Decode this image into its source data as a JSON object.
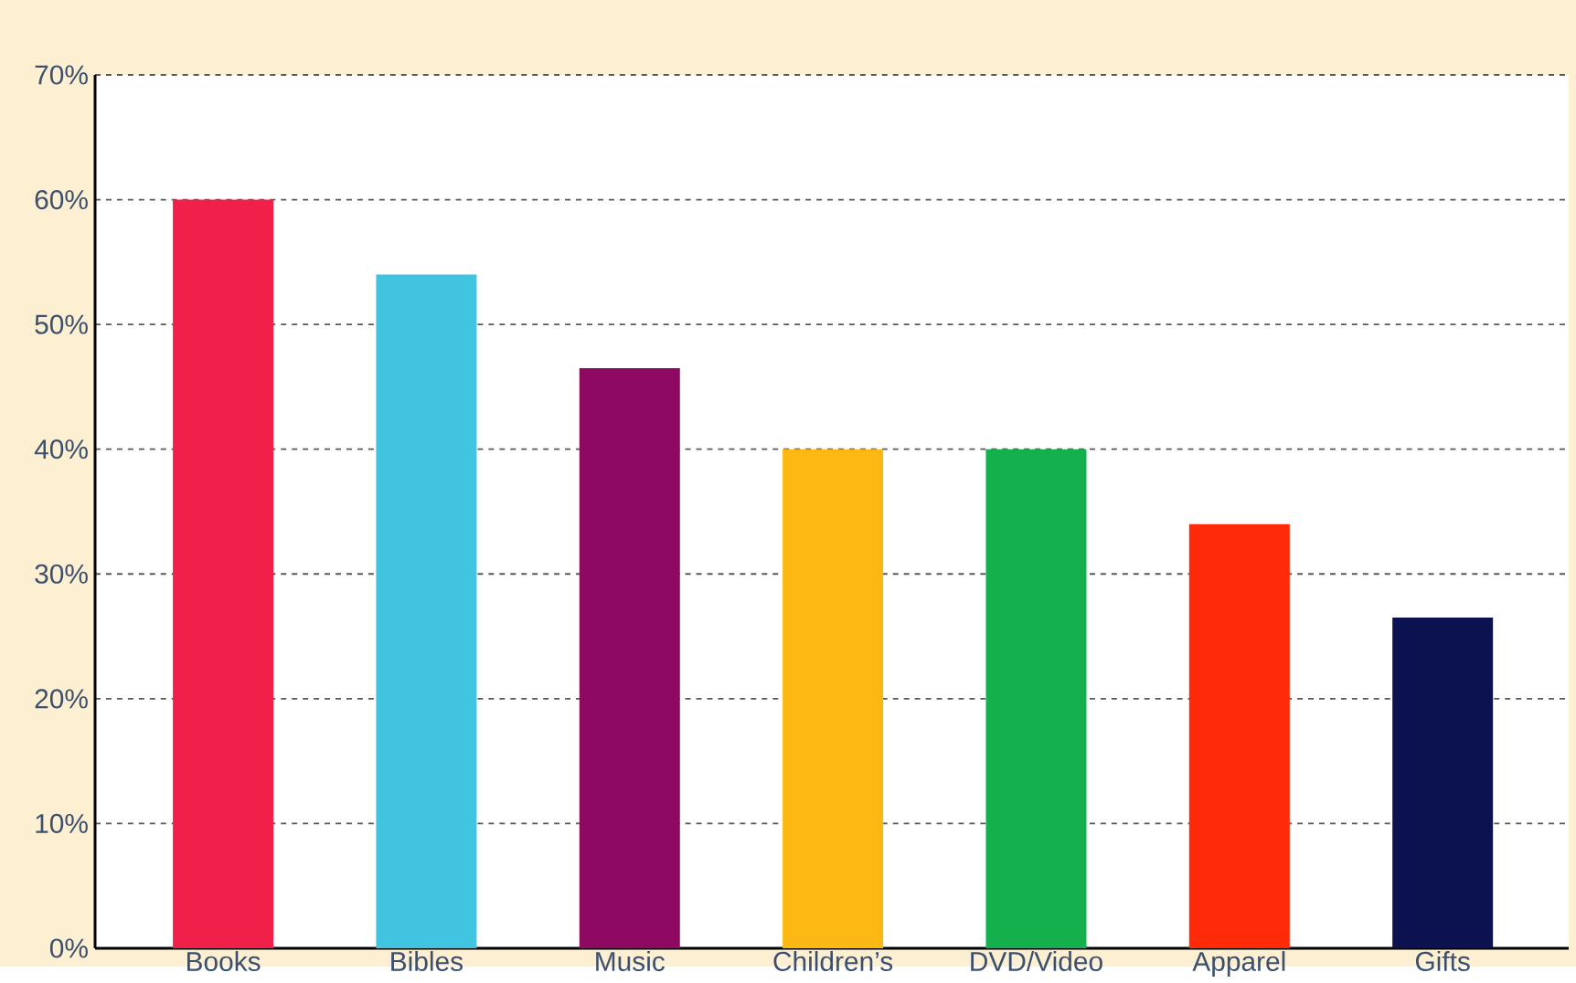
{
  "chart_data": {
    "type": "bar",
    "categories": [
      "Books",
      "Bibles",
      "Music",
      "Children’s",
      "DVD/Video",
      "Apparel",
      "Gifts"
    ],
    "values": [
      60,
      54,
      46.5,
      40,
      40,
      34,
      26.5
    ],
    "colors": [
      "#f0204a",
      "#40c4e0",
      "#8e0a62",
      "#fdb813",
      "#14b04e",
      "#ff2a0a",
      "#0c1250"
    ],
    "ylim": [
      0,
      70
    ],
    "yticks": [
      {
        "value": 0,
        "label": "0%"
      },
      {
        "value": 10,
        "label": "10%"
      },
      {
        "value": 20,
        "label": "20%"
      },
      {
        "value": 30,
        "label": "30%"
      },
      {
        "value": 40,
        "label": "40%"
      },
      {
        "value": 50,
        "label": "50%"
      },
      {
        "value": 60,
        "label": "60%"
      },
      {
        "value": 70,
        "label": "70%"
      }
    ],
    "grid": "y"
  }
}
